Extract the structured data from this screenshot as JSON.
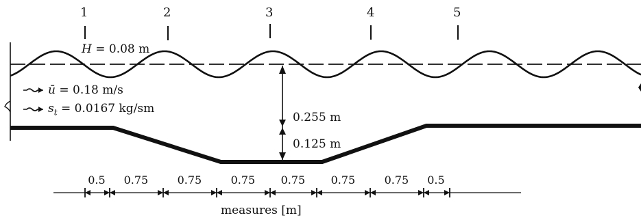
{
  "stations": [
    "1",
    "2",
    "3",
    "4",
    "5"
  ],
  "wave_height": {
    "symbol": "H",
    "value": "= 0.08 m"
  },
  "flow": {
    "velocity": {
      "symbol": "ū",
      "value": "= 0.18 m/s"
    },
    "transport": {
      "symbol": "s",
      "subscript": "t",
      "value": "= 0.0167 kg/sm"
    }
  },
  "depths": {
    "upper": "0.255 m",
    "lower": "0.125 m"
  },
  "segments": [
    "0.5",
    "0.75",
    "0.75",
    "0.75",
    "0.75",
    "0.75",
    "0.75",
    "0.5"
  ],
  "units_label": "measures [m]",
  "colors": {
    "ink": "#111111"
  }
}
